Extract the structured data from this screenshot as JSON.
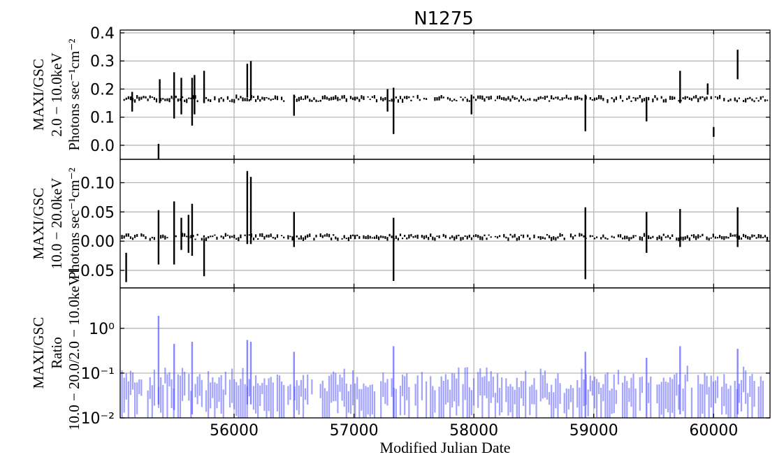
{
  "chart_data": {
    "type": "scatter",
    "title": "N1275",
    "xlabel": "Modified Julian Date",
    "xlim": [
      55050,
      60470
    ],
    "x_ticks": [
      56000,
      57000,
      58000,
      59000,
      60000
    ],
    "x_tick_labels": [
      "56000",
      "57000",
      "58000",
      "59000",
      "60000"
    ],
    "grid": true,
    "panels": [
      {
        "id": "soft",
        "ylabel_lines": [
          "MAXI/GSC",
          "2.0 − 10.0keV",
          "Photons sec⁻¹cm⁻²"
        ],
        "ylim": [
          -0.05,
          0.41
        ],
        "scale": "linear",
        "yticks": [
          0.0,
          0.1,
          0.2,
          0.3,
          0.4
        ],
        "ytick_labels": [
          "0.0",
          "0.1",
          "0.2",
          "0.3",
          "0.4"
        ],
        "color": "#000000",
        "baseline": 0.165,
        "spikes": [
          {
            "x": 55150,
            "lo": 0.12,
            "hi": 0.19
          },
          {
            "x": 55370,
            "lo": -0.055,
            "hi": 0.005
          },
          {
            "x": 55380,
            "lo": 0.15,
            "hi": 0.235
          },
          {
            "x": 55500,
            "lo": 0.095,
            "hi": 0.26
          },
          {
            "x": 55560,
            "lo": 0.11,
            "hi": 0.24
          },
          {
            "x": 55650,
            "lo": 0.07,
            "hi": 0.24
          },
          {
            "x": 55670,
            "lo": 0.11,
            "hi": 0.25
          },
          {
            "x": 55750,
            "lo": 0.15,
            "hi": 0.265
          },
          {
            "x": 56110,
            "lo": 0.17,
            "hi": 0.29
          },
          {
            "x": 56140,
            "lo": 0.16,
            "hi": 0.3
          },
          {
            "x": 56500,
            "lo": 0.105,
            "hi": 0.18
          },
          {
            "x": 57280,
            "lo": 0.12,
            "hi": 0.2
          },
          {
            "x": 57330,
            "lo": 0.04,
            "hi": 0.205
          },
          {
            "x": 57980,
            "lo": 0.11,
            "hi": 0.18
          },
          {
            "x": 58930,
            "lo": 0.05,
            "hi": 0.18
          },
          {
            "x": 59440,
            "lo": 0.085,
            "hi": 0.16
          },
          {
            "x": 59720,
            "lo": 0.15,
            "hi": 0.265
          },
          {
            "x": 59950,
            "lo": 0.18,
            "hi": 0.22
          },
          {
            "x": 60000,
            "lo": 0.03,
            "hi": 0.065
          },
          {
            "x": 60200,
            "lo": 0.235,
            "hi": 0.34
          }
        ]
      },
      {
        "id": "hard",
        "ylabel_lines": [
          "MAXI/GSC",
          "10.0 − 20.0keV",
          "Photons sec⁻¹cm⁻²"
        ],
        "ylim": [
          -0.08,
          0.14
        ],
        "scale": "linear",
        "yticks": [
          -0.05,
          0.0,
          0.05,
          0.1
        ],
        "ytick_labels": [
          "−0.05",
          "0.00",
          "0.05",
          "0.10"
        ],
        "color": "#000000",
        "baseline": 0.007,
        "spikes": [
          {
            "x": 55100,
            "lo": -0.07,
            "hi": -0.02
          },
          {
            "x": 55370,
            "lo": -0.04,
            "hi": 0.053
          },
          {
            "x": 55500,
            "lo": -0.04,
            "hi": 0.068
          },
          {
            "x": 55560,
            "lo": -0.015,
            "hi": 0.04
          },
          {
            "x": 55620,
            "lo": -0.02,
            "hi": 0.045
          },
          {
            "x": 55650,
            "lo": -0.025,
            "hi": 0.064
          },
          {
            "x": 55750,
            "lo": -0.06,
            "hi": 0.005
          },
          {
            "x": 56110,
            "lo": -0.005,
            "hi": 0.12
          },
          {
            "x": 56140,
            "lo": -0.005,
            "hi": 0.11
          },
          {
            "x": 56500,
            "lo": -0.01,
            "hi": 0.05
          },
          {
            "x": 57330,
            "lo": -0.068,
            "hi": 0.04
          },
          {
            "x": 58930,
            "lo": -0.065,
            "hi": 0.058
          },
          {
            "x": 59440,
            "lo": -0.02,
            "hi": 0.05
          },
          {
            "x": 59720,
            "lo": -0.01,
            "hi": 0.055
          },
          {
            "x": 60200,
            "lo": -0.01,
            "hi": 0.058
          }
        ]
      },
      {
        "id": "ratio",
        "ylabel_lines": [
          "MAXI/GSC",
          "Ratio",
          "10.0 − 20.0/2.0 − 10.0keV"
        ],
        "ylim": [
          0.01,
          8
        ],
        "scale": "log",
        "yticks": [
          0.01,
          0.1,
          1
        ],
        "ytick_labels": [
          "10⁻²",
          "10⁻¹",
          "10⁰"
        ],
        "color": "#5555ff",
        "baseline": 0.05,
        "spikes": [
          {
            "x": 55370,
            "lo": 0.02,
            "hi": 1.9
          },
          {
            "x": 55500,
            "lo": 0.015,
            "hi": 0.45
          },
          {
            "x": 55650,
            "lo": 0.012,
            "hi": 0.5
          },
          {
            "x": 56110,
            "lo": 0.02,
            "hi": 0.55
          },
          {
            "x": 56140,
            "lo": 0.02,
            "hi": 0.5
          },
          {
            "x": 56500,
            "lo": 0.01,
            "hi": 0.3
          },
          {
            "x": 57330,
            "lo": 0.01,
            "hi": 0.4
          },
          {
            "x": 58930,
            "lo": 0.01,
            "hi": 0.3
          },
          {
            "x": 59440,
            "lo": 0.01,
            "hi": 0.22
          },
          {
            "x": 59720,
            "lo": 0.012,
            "hi": 0.4
          },
          {
            "x": 60200,
            "lo": 0.012,
            "hi": 0.35
          }
        ]
      }
    ]
  }
}
